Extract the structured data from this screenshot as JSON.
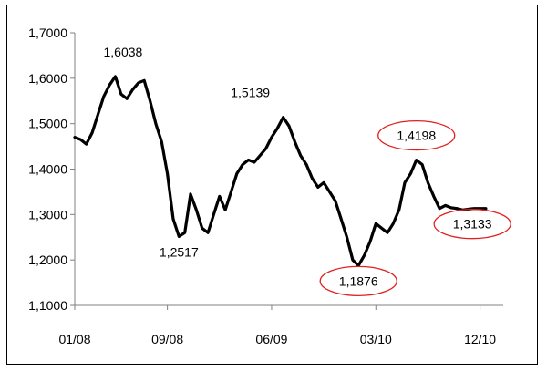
{
  "chart_data": {
    "type": "line",
    "title": "",
    "xlabel": "",
    "ylabel": "",
    "ylim": [
      1.1,
      1.7
    ],
    "y_ticks": [
      1.1,
      1.2,
      1.3,
      1.4,
      1.5,
      1.6,
      1.7
    ],
    "y_tick_labels": [
      "1,1000",
      "1,2000",
      "1,3000",
      "1,4000",
      "1,5000",
      "1,6000",
      "1,7000"
    ],
    "x_tick_labels": [
      "01/08",
      "09/08",
      "06/09",
      "03/10",
      "12/10"
    ],
    "x_tick_positions": [
      0,
      8,
      17,
      26,
      35
    ],
    "grid": false,
    "legend": "none",
    "series": [
      {
        "color": "#000000",
        "x": [
          0,
          0.5,
          1,
          1.5,
          2,
          2.5,
          3,
          3.5,
          4,
          4.5,
          5,
          5.5,
          6,
          6.5,
          7,
          7.5,
          8,
          8.5,
          9,
          9.5,
          10,
          10.5,
          11,
          11.5,
          12,
          12.5,
          13,
          13.5,
          14,
          14.5,
          15,
          15.5,
          16,
          16.5,
          17,
          17.5,
          18,
          18.5,
          19,
          19.5,
          20,
          20.5,
          21,
          21.5,
          22,
          22.5,
          23,
          23.5,
          24,
          24.5,
          25,
          25.5,
          26,
          26.5,
          27,
          27.5,
          28,
          28.5,
          29,
          29.5,
          30,
          30.5,
          31,
          31.5,
          32,
          32.5,
          33,
          33.5,
          34,
          34.5,
          35,
          35.5
        ],
        "values": [
          1.47,
          1.465,
          1.455,
          1.48,
          1.52,
          1.56,
          1.585,
          1.6038,
          1.565,
          1.555,
          1.575,
          1.59,
          1.595,
          1.55,
          1.5,
          1.46,
          1.39,
          1.29,
          1.2517,
          1.26,
          1.345,
          1.31,
          1.27,
          1.26,
          1.3,
          1.34,
          1.31,
          1.35,
          1.39,
          1.41,
          1.42,
          1.415,
          1.43,
          1.445,
          1.47,
          1.49,
          1.5139,
          1.495,
          1.46,
          1.43,
          1.41,
          1.38,
          1.36,
          1.37,
          1.35,
          1.33,
          1.29,
          1.25,
          1.2,
          1.1876,
          1.21,
          1.24,
          1.28,
          1.27,
          1.26,
          1.28,
          1.31,
          1.37,
          1.39,
          1.4198,
          1.41,
          1.37,
          1.34,
          1.3133,
          1.32,
          1.315,
          1.3133,
          1.31,
          1.312,
          1.3133,
          1.3133,
          1.3133
        ]
      }
    ],
    "annotations": [
      {
        "label": "1,6038",
        "x": 7,
        "y": 1.6038,
        "circled": false,
        "x_shift": -1,
        "y_shift": 1
      },
      {
        "label": "1,2517",
        "x": 9,
        "y": 1.2517,
        "circled": false,
        "x_shift": 0,
        "y_shift": -1
      },
      {
        "label": "1,5139",
        "x": 18,
        "y": 1.5139,
        "circled": false,
        "x_shift": -1,
        "y_shift": 1
      },
      {
        "label": "1,1876",
        "x": 24.5,
        "y": 1.1876,
        "circled": true,
        "x_shift": 0,
        "y_shift": -1
      },
      {
        "label": "1,4198",
        "x": 29.5,
        "y": 1.4198,
        "circled": true,
        "x_shift": 0,
        "y_shift": 1
      },
      {
        "label": "1,3133",
        "x": 31.5,
        "y": 1.3133,
        "circled": true,
        "x_shift": 1,
        "y_shift": -1
      }
    ],
    "annotation_circle_color": "#e0201f"
  }
}
